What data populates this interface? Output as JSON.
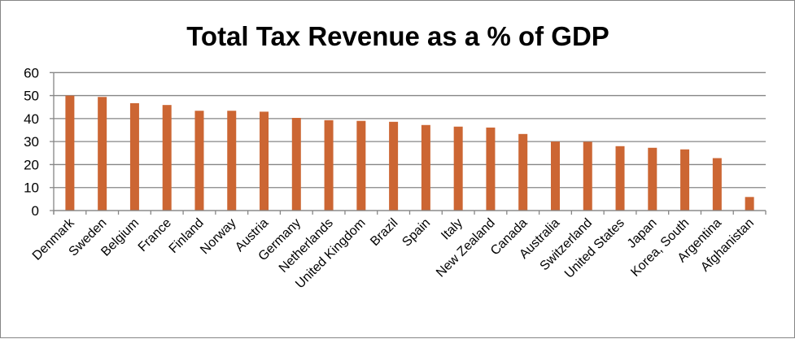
{
  "chart_data": {
    "type": "bar",
    "title": "Total Tax Revenue as a % of GDP",
    "xlabel": "",
    "ylabel": "",
    "ylim": [
      0,
      60
    ],
    "yticks": [
      0,
      10,
      20,
      30,
      40,
      50,
      60
    ],
    "grid": true,
    "legend": "none",
    "categories": [
      "Denmark",
      "Sweden",
      "Belgium",
      "France",
      "Finland",
      "Norway",
      "Austria",
      "Germany",
      "Netherlands",
      "United Kingdom",
      "Brazil",
      "Spain",
      "Italy",
      "New Zealand",
      "Canada",
      "Australia",
      "Switzerland",
      "United States",
      "Japan",
      "Korea, South",
      "Argentina",
      "Afghanistan"
    ],
    "values": [
      50.0,
      49.4,
      46.7,
      45.9,
      43.4,
      43.4,
      43.0,
      40.3,
      39.3,
      39.0,
      38.6,
      37.2,
      36.5,
      36.1,
      33.3,
      30.0,
      29.9,
      28.0,
      27.3,
      26.6,
      22.8,
      5.9
    ],
    "bar_color": "#cc6633",
    "grid_color": "#868686"
  }
}
